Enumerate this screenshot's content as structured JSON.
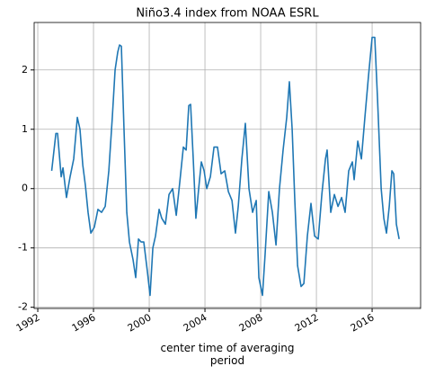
{
  "chart_data": {
    "type": "line",
    "title": "Niño3.4 index from NOAA ESRL",
    "x_label": "center time of averaging period",
    "x": [
      1993.0,
      1993.3,
      1993.42,
      1993.68,
      1993.81,
      1994.06,
      1994.32,
      1994.58,
      1994.84,
      1995.03,
      1995.23,
      1995.42,
      1995.61,
      1995.81,
      1996.06,
      1996.32,
      1996.58,
      1996.84,
      1997.1,
      1997.35,
      1997.55,
      1997.74,
      1997.87,
      1998.0,
      1998.19,
      1998.39,
      1998.58,
      1998.84,
      1999.03,
      1999.23,
      1999.42,
      1999.61,
      1999.87,
      2000.06,
      2000.26,
      2000.45,
      2000.71,
      2000.9,
      2001.16,
      2001.42,
      2001.68,
      2001.94,
      2002.19,
      2002.45,
      2002.65,
      2002.84,
      2002.97,
      2003.16,
      2003.35,
      2003.55,
      2003.74,
      2003.94,
      2004.13,
      2004.39,
      2004.65,
      2004.9,
      2005.16,
      2005.42,
      2005.68,
      2005.94,
      2006.19,
      2006.39,
      2006.65,
      2006.9,
      2007.16,
      2007.42,
      2007.68,
      2007.87,
      2008.13,
      2008.32,
      2008.58,
      2008.84,
      2009.1,
      2009.35,
      2009.61,
      2009.87,
      2010.06,
      2010.26,
      2010.45,
      2010.65,
      2010.9,
      2011.1,
      2011.35,
      2011.61,
      2011.87,
      2012.13,
      2012.39,
      2012.65,
      2012.77,
      2013.03,
      2013.29,
      2013.55,
      2013.81,
      2014.06,
      2014.32,
      2014.58,
      2014.71,
      2014.97,
      2015.23,
      2015.48,
      2015.74,
      2016.0,
      2016.19,
      2016.39,
      2016.65,
      2016.84,
      2017.03,
      2017.23,
      2017.42,
      2017.55,
      2017.74,
      2017.94
    ],
    "values": [
      0.3,
      0.93,
      0.93,
      0.2,
      0.35,
      -0.15,
      0.2,
      0.5,
      1.2,
      1.0,
      0.4,
      0.05,
      -0.4,
      -0.75,
      -0.65,
      -0.35,
      -0.4,
      -0.3,
      0.3,
      1.2,
      2.0,
      2.3,
      2.42,
      2.4,
      1.0,
      -0.4,
      -0.9,
      -1.2,
      -1.5,
      -0.85,
      -0.9,
      -0.9,
      -1.4,
      -1.8,
      -1.0,
      -0.8,
      -0.35,
      -0.5,
      -0.6,
      -0.1,
      0.0,
      -0.45,
      0.1,
      0.7,
      0.65,
      1.4,
      1.42,
      0.5,
      -0.5,
      0.0,
      0.45,
      0.3,
      0.0,
      0.2,
      0.7,
      0.7,
      0.25,
      0.3,
      -0.05,
      -0.2,
      -0.75,
      -0.3,
      0.5,
      1.1,
      0.0,
      -0.4,
      -0.2,
      -1.5,
      -1.8,
      -1.1,
      -0.05,
      -0.4,
      -0.95,
      0.0,
      0.65,
      1.2,
      1.8,
      1.0,
      -0.2,
      -1.3,
      -1.65,
      -1.6,
      -0.8,
      -0.25,
      -0.8,
      -0.85,
      -0.1,
      0.5,
      0.65,
      -0.4,
      -0.1,
      -0.3,
      -0.15,
      -0.4,
      0.3,
      0.45,
      0.15,
      0.8,
      0.5,
      1.2,
      1.9,
      2.55,
      2.55,
      1.5,
      0.0,
      -0.5,
      -0.75,
      -0.3,
      0.3,
      0.25,
      -0.6,
      -0.85
    ],
    "color": "#1f77b4",
    "xlim": [
      1991.74,
      2019.48
    ],
    "xticks": [
      1992,
      1996,
      2000,
      2004,
      2008,
      2012,
      2016
    ],
    "ylim": [
      -2.02,
      2.8
    ],
    "yticks": [
      -2,
      -1,
      0,
      1,
      2
    ],
    "grid": true
  }
}
